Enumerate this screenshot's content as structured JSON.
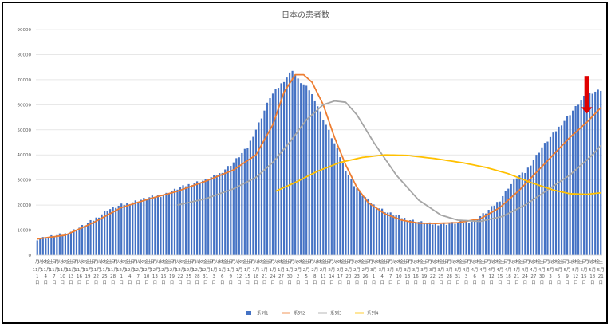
{
  "chart_data": {
    "type": "bar",
    "title": "日本の患者数",
    "xlabel": "",
    "ylabel": "",
    "ylim": [
      0,
      90000
    ],
    "yticks": [
      0,
      10000,
      20000,
      30000,
      40000,
      50000,
      60000,
      70000,
      80000,
      90000
    ],
    "grid": true,
    "legend_position": "bottom",
    "colors": {
      "series1": "#4472C4",
      "series2": "#ED7D31",
      "series3": "#A5A5A5",
      "series4": "#FFC000",
      "arrow": "#E00000",
      "grid": "#D9D9D9"
    },
    "start_date": "2021-11-01",
    "days": 202,
    "bar_anchors": [
      [
        0,
        6500
      ],
      [
        5,
        7500
      ],
      [
        10,
        8500
      ],
      [
        15,
        11000
      ],
      [
        20,
        14000
      ],
      [
        25,
        18000
      ],
      [
        30,
        20000
      ],
      [
        35,
        21500
      ],
      [
        40,
        23000
      ],
      [
        45,
        24000
      ],
      [
        50,
        26500
      ],
      [
        55,
        28500
      ],
      [
        60,
        30000
      ],
      [
        65,
        32500
      ],
      [
        70,
        37000
      ],
      [
        75,
        43000
      ],
      [
        80,
        55000
      ],
      [
        83,
        63000
      ],
      [
        86,
        67000
      ],
      [
        89,
        71000
      ],
      [
        91,
        74000
      ],
      [
        93,
        70000
      ],
      [
        95,
        68000
      ],
      [
        97,
        66000
      ],
      [
        99,
        62000
      ],
      [
        101,
        57000
      ],
      [
        103,
        52000
      ],
      [
        105,
        47000
      ],
      [
        107,
        42000
      ],
      [
        110,
        34000
      ],
      [
        113,
        28000
      ],
      [
        116,
        24000
      ],
      [
        120,
        20000
      ],
      [
        125,
        17000
      ],
      [
        130,
        15000
      ],
      [
        135,
        13500
      ],
      [
        140,
        12500
      ],
      [
        145,
        12500
      ],
      [
        150,
        13000
      ],
      [
        155,
        13500
      ],
      [
        160,
        17000
      ],
      [
        165,
        22000
      ],
      [
        168,
        27000
      ],
      [
        171,
        31000
      ],
      [
        174,
        33000
      ],
      [
        177,
        38000
      ],
      [
        180,
        43000
      ],
      [
        183,
        47000
      ],
      [
        186,
        51000
      ],
      [
        189,
        55000
      ],
      [
        192,
        59000
      ],
      [
        195,
        63000
      ],
      [
        198,
        65000
      ],
      [
        201,
        66000
      ],
      [
        203,
        69000
      ],
      [
        205,
        72000
      ],
      [
        208,
        76000
      ],
      [
        211,
        79000
      ],
      [
        213,
        76000
      ],
      [
        215,
        73000
      ],
      [
        217,
        71000
      ]
    ],
    "series": [
      {
        "name": "系列1",
        "kind": "bar",
        "anchors": "bar_anchors"
      },
      {
        "name": "系列2",
        "kind": "line",
        "anchors": [
          [
            0,
            6500
          ],
          [
            10,
            8000
          ],
          [
            20,
            13000
          ],
          [
            30,
            19000
          ],
          [
            40,
            22500
          ],
          [
            50,
            25500
          ],
          [
            60,
            29500
          ],
          [
            70,
            34000
          ],
          [
            78,
            40000
          ],
          [
            84,
            52000
          ],
          [
            88,
            65000
          ],
          [
            92,
            72000
          ],
          [
            95,
            72000
          ],
          [
            98,
            69000
          ],
          [
            102,
            60000
          ],
          [
            106,
            47000
          ],
          [
            110,
            36000
          ],
          [
            114,
            27000
          ],
          [
            118,
            21000
          ],
          [
            124,
            16500
          ],
          [
            130,
            14000
          ],
          [
            136,
            12800
          ],
          [
            142,
            12700
          ],
          [
            150,
            13000
          ],
          [
            158,
            14500
          ],
          [
            165,
            19000
          ],
          [
            172,
            26000
          ],
          [
            178,
            33000
          ],
          [
            184,
            40000
          ],
          [
            190,
            47000
          ],
          [
            196,
            53000
          ],
          [
            202,
            60000
          ],
          [
            208,
            67000
          ],
          [
            213,
            73000
          ],
          [
            216,
            77000
          ],
          [
            219,
            77000
          ],
          [
            222,
            75000
          ]
        ]
      },
      {
        "name": "系列3",
        "kind": "line",
        "start": 50,
        "anchors": [
          [
            50,
            20000
          ],
          [
            60,
            22500
          ],
          [
            70,
            26500
          ],
          [
            78,
            31000
          ],
          [
            84,
            37000
          ],
          [
            90,
            45000
          ],
          [
            96,
            54000
          ],
          [
            102,
            60000
          ],
          [
            106,
            61500
          ],
          [
            110,
            61000
          ],
          [
            114,
            56000
          ],
          [
            120,
            45000
          ],
          [
            128,
            32000
          ],
          [
            136,
            22000
          ],
          [
            144,
            16000
          ],
          [
            150,
            14000
          ],
          [
            158,
            13500
          ],
          [
            166,
            15500
          ],
          [
            174,
            20000
          ],
          [
            182,
            26000
          ],
          [
            190,
            32000
          ],
          [
            198,
            40000
          ],
          [
            206,
            50000
          ],
          [
            214,
            60000
          ],
          [
            222,
            68000
          ]
        ]
      },
      {
        "name": "系列4",
        "kind": "line",
        "start": 85,
        "anchors": [
          [
            85,
            25500
          ],
          [
            92,
            29000
          ],
          [
            100,
            33500
          ],
          [
            108,
            37000
          ],
          [
            116,
            39000
          ],
          [
            124,
            40000
          ],
          [
            132,
            39800
          ],
          [
            142,
            38500
          ],
          [
            152,
            36800
          ],
          [
            160,
            35000
          ],
          [
            168,
            32500
          ],
          [
            176,
            29000
          ],
          [
            184,
            26000
          ],
          [
            190,
            24500
          ],
          [
            196,
            24300
          ],
          [
            202,
            25000
          ],
          [
            210,
            28000
          ],
          [
            216,
            33000
          ],
          [
            222,
            37500
          ]
        ]
      }
    ],
    "annotations": [
      {
        "type": "arrow-down",
        "day": 196,
        "from_value": 71500,
        "to_value": 56500
      }
    ]
  }
}
